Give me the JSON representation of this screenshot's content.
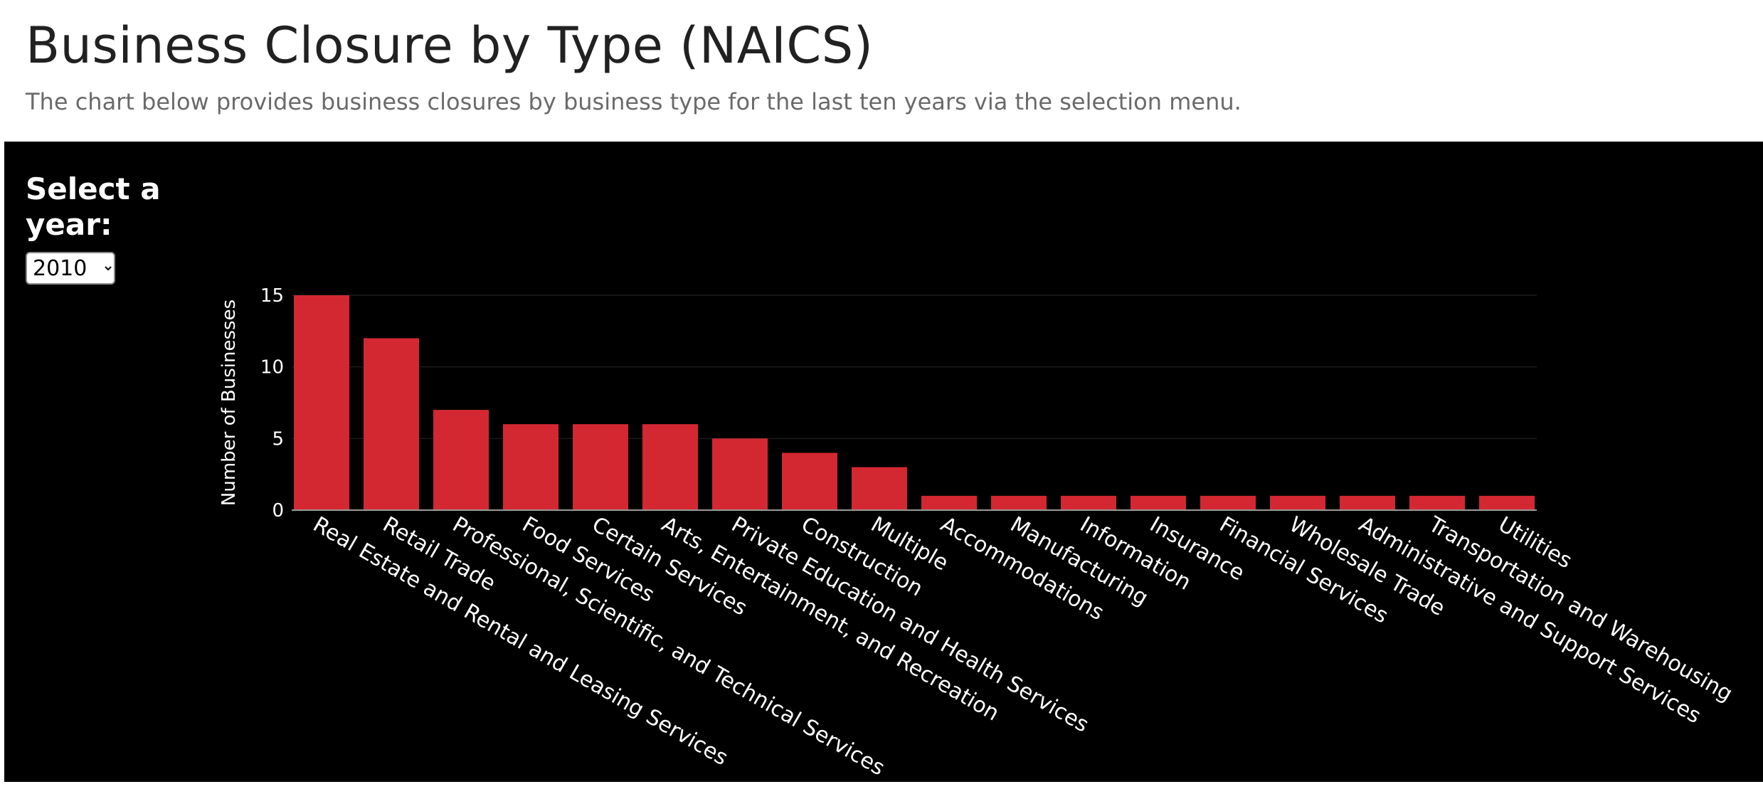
{
  "header": {
    "title": "Business Closure by Type (NAICS)",
    "subtitle": "The chart below provides business closures by business type for the last ten years via the selection menu."
  },
  "controls": {
    "year_label": "Select a year:",
    "year_selected": "2010"
  },
  "colors": {
    "bar": "#d32832",
    "background": "#000000",
    "text": "#ffffff"
  },
  "chart_data": {
    "type": "bar",
    "title": "",
    "xlabel": "",
    "ylabel": "Number of Businesses",
    "ylim": [
      0,
      15
    ],
    "yticks": [
      0,
      5,
      10,
      15
    ],
    "grid": true,
    "categories": [
      "Real Estate and Rental and Leasing Services",
      "Retail Trade",
      "Professional, Scientific, and Technical Services",
      "Food Services",
      "Certain Services",
      "Arts, Entertainment, and Recreation",
      "Private Education and Health Services",
      "Construction",
      "Multiple",
      "Accommodations",
      "Manufacturing",
      "Information",
      "Insurance",
      "Financial Services",
      "Wholesale Trade",
      "Administrative and Support Services",
      "Transportation and Warehousing",
      "Utilities"
    ],
    "values": [
      15,
      12,
      7,
      6,
      6,
      6,
      5,
      4,
      3,
      1,
      1,
      1,
      1,
      1,
      1,
      1,
      1,
      1
    ]
  }
}
